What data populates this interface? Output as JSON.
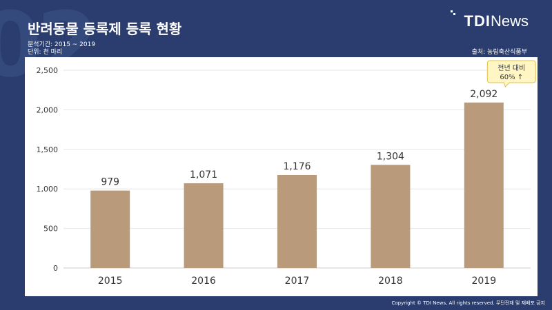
{
  "title": "반려동물 등록제 등록 현황",
  "period": "분석기간: 2015 ~ 2019",
  "unit": "단위: 천 마리",
  "source": "출처: 농림축산식품부",
  "logo": {
    "tdi": "TDI",
    "news": "News"
  },
  "background_number": "02",
  "footer": "Copyright © TDI News, All rights reserved. 무단전재 및 재배포 금지",
  "callout": {
    "line1": "전년 대비",
    "line2": "60% ↑"
  },
  "colors": {
    "background": "#2a3d6e",
    "bar": "#b99a7a",
    "callout_fill": "#fff6c4",
    "callout_border": "#e0c048"
  },
  "chart_data": {
    "type": "bar",
    "categories": [
      "2015",
      "2016",
      "2017",
      "2018",
      "2019"
    ],
    "values": [
      979,
      1071,
      1176,
      1304,
      2092
    ],
    "value_labels": [
      "979",
      "1,071",
      "1,176",
      "1,304",
      "2,092"
    ],
    "ylim": [
      0,
      2500
    ],
    "yticks": [
      0,
      500,
      1000,
      1500,
      2000,
      2500
    ],
    "ytick_labels": [
      "0",
      "500",
      "1,000",
      "1,500",
      "2,000",
      "2,500"
    ],
    "grid": true,
    "annotation": {
      "category": "2019",
      "text": "전년 대비 60% ↑"
    }
  }
}
